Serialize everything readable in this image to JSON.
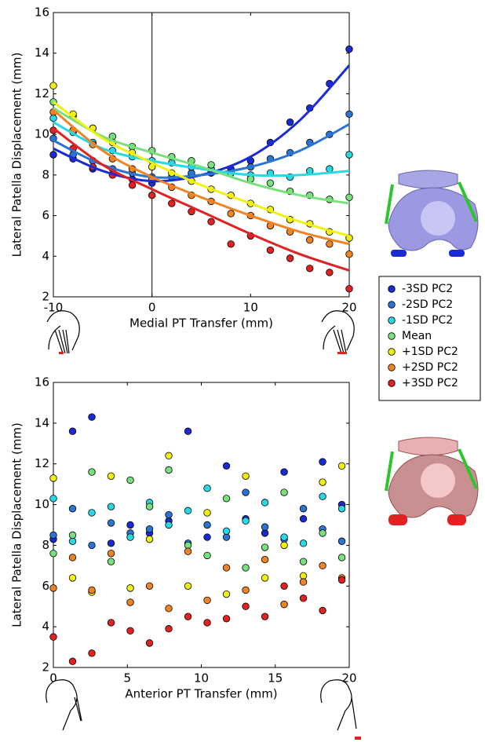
{
  "chart_data": [
    {
      "type": "scatter",
      "x_label": "Medial PT Transfer (mm)",
      "y_label": "Lateral Patella Displacement (mm)",
      "xlim": [
        -10,
        20
      ],
      "xticks": [
        -10,
        0,
        10,
        20
      ],
      "ylim": [
        2,
        16
      ],
      "yticks": [
        2,
        4,
        6,
        8,
        10,
        12,
        14,
        16
      ],
      "vline": 0,
      "x": [
        -10,
        -8,
        -6,
        -4,
        -2,
        0,
        2,
        4,
        6,
        8,
        10,
        12,
        14,
        16,
        18,
        20
      ],
      "fit_x": [
        -10,
        -5,
        0,
        5,
        10,
        15,
        20
      ],
      "series": [
        {
          "name": "-3SD PC2",
          "color": "#1a2bd6",
          "values": [
            9.0,
            8.8,
            8.3,
            8.0,
            7.8,
            7.6,
            7.9,
            8.0,
            8.1,
            8.3,
            8.7,
            9.6,
            10.6,
            11.3,
            12.5,
            14.2
          ],
          "fit_values": [
            9.3,
            8.2,
            7.7,
            8.0,
            8.9,
            10.7,
            13.4
          ]
        },
        {
          "name": "-2SD PC2",
          "color": "#2a74d4",
          "values": [
            9.8,
            9.0,
            8.7,
            8.3,
            8.1,
            7.9,
            7.9,
            8.1,
            8.2,
            8.1,
            8.4,
            8.8,
            9.1,
            9.6,
            10.0,
            11.0
          ],
          "fit_values": [
            9.7,
            8.5,
            7.9,
            8.0,
            8.4,
            9.2,
            10.5
          ]
        },
        {
          "name": "-1SD PC2",
          "color": "#28d8e4",
          "values": [
            10.8,
            10.1,
            9.6,
            9.2,
            8.9,
            8.7,
            8.6,
            8.4,
            8.3,
            8.1,
            8.0,
            8.1,
            7.9,
            8.2,
            8.3,
            9.0
          ],
          "fit_values": [
            10.6,
            9.3,
            8.7,
            8.3,
            8.0,
            8.0,
            8.2
          ]
        },
        {
          "name": "Mean",
          "color": "#78e07c",
          "values": [
            11.6,
            10.9,
            10.3,
            9.9,
            9.4,
            9.2,
            8.9,
            8.7,
            8.5,
            8.1,
            7.8,
            7.6,
            7.2,
            7.0,
            6.8,
            6.9
          ],
          "fit_values": [
            11.3,
            9.9,
            9.1,
            8.4,
            7.6,
            7.0,
            6.6
          ]
        },
        {
          "name": "+1SD PC2",
          "color": "#f2f010",
          "values": [
            12.4,
            11.0,
            10.3,
            9.6,
            9.1,
            8.4,
            8.1,
            7.7,
            7.3,
            7.0,
            6.6,
            6.3,
            5.8,
            5.6,
            5.2,
            4.9
          ],
          "fit_values": [
            11.6,
            9.8,
            8.6,
            7.5,
            6.6,
            5.7,
            5.0
          ]
        },
        {
          "name": "+2SD PC2",
          "color": "#f08424",
          "values": [
            11.1,
            10.2,
            9.5,
            8.8,
            8.3,
            7.8,
            7.4,
            7.0,
            6.7,
            6.1,
            6.0,
            5.5,
            5.2,
            4.8,
            4.6,
            4.1
          ],
          "fit_values": [
            11.2,
            9.2,
            7.9,
            6.9,
            6.0,
            5.2,
            4.6
          ]
        },
        {
          "name": "+3SD PC2",
          "color": "#e02222",
          "values": [
            10.2,
            9.3,
            8.4,
            8.0,
            7.5,
            7.0,
            6.6,
            6.2,
            5.7,
            4.6,
            5.0,
            4.3,
            3.9,
            3.4,
            3.2,
            2.4
          ],
          "fit_values": [
            10.3,
            8.5,
            7.3,
            6.2,
            5.1,
            4.1,
            3.3
          ]
        }
      ]
    },
    {
      "type": "scatter",
      "x_label": "Anterior PT Transfer (mm)",
      "y_label": "Lateral Patella Displacement (mm)",
      "xlim": [
        0,
        20
      ],
      "xticks": [
        0,
        5,
        10,
        15,
        20
      ],
      "ylim": [
        2,
        16
      ],
      "yticks": [
        2,
        4,
        6,
        8,
        10,
        12,
        14,
        16
      ],
      "x": [
        0,
        1.3,
        2.6,
        3.9,
        5.2,
        6.5,
        7.8,
        9.1,
        10.4,
        11.7,
        13,
        14.3,
        15.6,
        16.9,
        18.2,
        19.5
      ],
      "series": [
        {
          "color": "#1a2bd6",
          "values": [
            8.3,
            13.6,
            14.3,
            8.1,
            9.0,
            8.6,
            9.2,
            13.6,
            8.4,
            11.9,
            9.3,
            8.6,
            11.6,
            9.3,
            12.1,
            10.0
          ]
        },
        {
          "color": "#2a74d4",
          "values": [
            8.5,
            9.8,
            8.0,
            9.1,
            8.6,
            8.8,
            9.5,
            8.1,
            9.0,
            8.4,
            10.6,
            8.9,
            8.3,
            9.8,
            8.8,
            8.2
          ]
        },
        {
          "color": "#28d8e4",
          "values": [
            10.3,
            8.2,
            9.6,
            9.9,
            8.4,
            10.1,
            9.0,
            9.7,
            10.8,
            8.7,
            9.2,
            10.1,
            8.4,
            8.1,
            10.4,
            9.8
          ]
        },
        {
          "color": "#78e07c",
          "values": [
            7.6,
            8.5,
            11.6,
            7.2,
            11.2,
            9.9,
            11.7,
            8.0,
            7.5,
            10.3,
            6.9,
            7.9,
            10.6,
            7.2,
            8.6,
            7.4
          ]
        },
        {
          "color": "#f2f010",
          "values": [
            11.3,
            6.4,
            5.7,
            11.4,
            5.9,
            8.3,
            12.4,
            6.0,
            9.6,
            5.6,
            11.4,
            6.4,
            8.0,
            6.5,
            11.1,
            11.9
          ]
        },
        {
          "color": "#f08424",
          "values": [
            5.9,
            7.4,
            5.8,
            7.6,
            5.2,
            6.0,
            4.9,
            7.7,
            5.3,
            6.9,
            5.8,
            7.3,
            5.1,
            6.2,
            7.0,
            6.4
          ]
        },
        {
          "color": "#e02222",
          "values": [
            3.5,
            2.3,
            2.7,
            4.2,
            3.8,
            3.2,
            3.9,
            4.5,
            4.2,
            4.4,
            5.0,
            4.5,
            6.0,
            5.4,
            4.8,
            6.3
          ]
        }
      ]
    }
  ]
}
